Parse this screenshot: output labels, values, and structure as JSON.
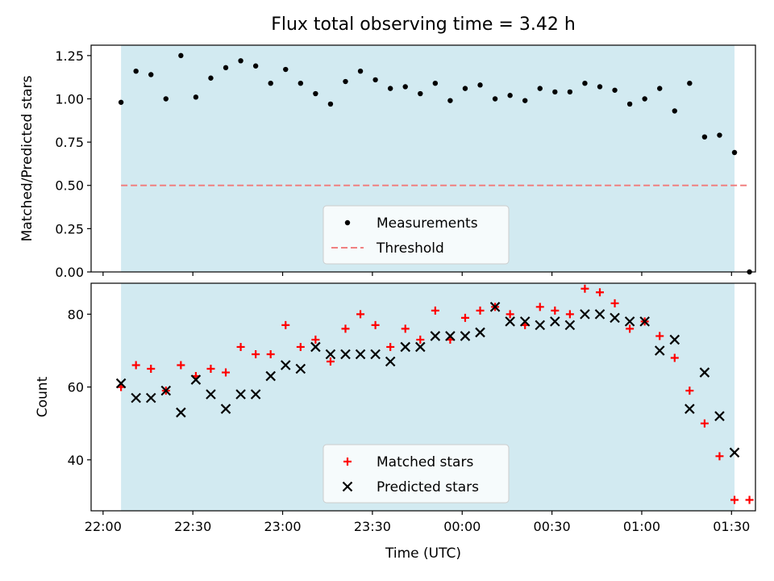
{
  "chart_data": [
    {
      "type": "scatter",
      "title": "Flux total observing time = 3.42 h",
      "xlabel": "",
      "ylabel": "Matched/Predicted stars",
      "ylim": [
        0,
        1.31
      ],
      "yticks": [
        0.0,
        0.25,
        0.5,
        0.75,
        1.0,
        1.25
      ],
      "ytick_labels": [
        "0.00",
        "0.25",
        "0.50",
        "0.75",
        "1.00",
        "1.25"
      ],
      "x_range": [
        "21:56",
        "01:38"
      ],
      "shaded_span": [
        "22:06",
        "01:31"
      ],
      "shade_color": "#add8e6",
      "legend_position": "lower center",
      "series": [
        {
          "name": "Measurements",
          "marker": "dot",
          "color": "#000000",
          "x": [
            "22:06",
            "22:11",
            "22:16",
            "22:21",
            "22:26",
            "22:31",
            "22:36",
            "22:41",
            "22:46",
            "22:51",
            "22:56",
            "23:01",
            "23:06",
            "23:11",
            "23:16",
            "23:21",
            "23:26",
            "23:31",
            "23:36",
            "23:41",
            "23:46",
            "23:51",
            "23:56",
            "00:01",
            "00:06",
            "00:11",
            "00:16",
            "00:21",
            "00:26",
            "00:31",
            "00:36",
            "00:41",
            "00:46",
            "00:51",
            "00:56",
            "01:01",
            "01:06",
            "01:11",
            "01:16",
            "01:21",
            "01:26",
            "01:31",
            "01:36"
          ],
          "y": [
            0.98,
            1.16,
            1.14,
            1.0,
            1.25,
            1.01,
            1.12,
            1.18,
            1.22,
            1.19,
            1.09,
            1.17,
            1.09,
            1.03,
            0.97,
            1.1,
            1.16,
            1.11,
            1.06,
            1.07,
            1.03,
            1.09,
            0.99,
            1.06,
            1.08,
            1.0,
            1.02,
            0.99,
            1.06,
            1.04,
            1.04,
            1.09,
            1.07,
            1.05,
            0.97,
            1.0,
            1.06,
            0.93,
            1.09,
            0.78,
            0.79,
            0.69,
            0.0
          ]
        },
        {
          "name": "Threshold",
          "style": "dashed",
          "color": "#f08080",
          "x": [
            "22:06",
            "01:36"
          ],
          "y": [
            0.5,
            0.5
          ]
        }
      ]
    },
    {
      "type": "scatter",
      "title": "",
      "xlabel": "Time (UTC)",
      "ylabel": "Count",
      "ylim": [
        26,
        88.5
      ],
      "yticks": [
        40,
        60,
        80
      ],
      "ytick_labels": [
        "40",
        "60",
        "80"
      ],
      "xticks": [
        "22:00",
        "22:30",
        "23:00",
        "23:30",
        "00:00",
        "00:30",
        "01:00",
        "01:30"
      ],
      "x_range": [
        "21:56",
        "01:38"
      ],
      "shaded_span": [
        "22:06",
        "01:31"
      ],
      "shade_color": "#add8e6",
      "legend_position": "lower center",
      "series": [
        {
          "name": "Matched stars",
          "marker": "plus",
          "color": "#ff0000",
          "x": [
            "22:06",
            "22:11",
            "22:16",
            "22:21",
            "22:26",
            "22:31",
            "22:36",
            "22:41",
            "22:46",
            "22:51",
            "22:56",
            "23:01",
            "23:06",
            "23:11",
            "23:16",
            "23:21",
            "23:26",
            "23:31",
            "23:36",
            "23:41",
            "23:46",
            "23:51",
            "23:56",
            "00:01",
            "00:06",
            "00:11",
            "00:16",
            "00:21",
            "00:26",
            "00:31",
            "00:36",
            "00:41",
            "00:46",
            "00:51",
            "00:56",
            "01:01",
            "01:06",
            "01:11",
            "01:16",
            "01:21",
            "01:26",
            "01:31",
            "01:36"
          ],
          "y": [
            60,
            66,
            65,
            59,
            66,
            63,
            65,
            64,
            71,
            69,
            69,
            77,
            71,
            73,
            67,
            76,
            80,
            77,
            71,
            76,
            73,
            81,
            73,
            79,
            81,
            82,
            80,
            77,
            82,
            81,
            80,
            87,
            86,
            83,
            76,
            78,
            74,
            68,
            59,
            50,
            41,
            29,
            29
          ]
        },
        {
          "name": "Predicted stars",
          "marker": "x",
          "color": "#000000",
          "x": [
            "22:06",
            "22:11",
            "22:16",
            "22:21",
            "22:26",
            "22:31",
            "22:36",
            "22:41",
            "22:46",
            "22:51",
            "22:56",
            "23:01",
            "23:06",
            "23:11",
            "23:16",
            "23:21",
            "23:26",
            "23:31",
            "23:36",
            "23:41",
            "23:46",
            "23:51",
            "23:56",
            "00:01",
            "00:06",
            "00:11",
            "00:16",
            "00:21",
            "00:26",
            "00:31",
            "00:36",
            "00:41",
            "00:46",
            "00:51",
            "00:56",
            "01:01",
            "01:06",
            "01:11",
            "01:16",
            "01:21",
            "01:26",
            "01:31"
          ],
          "y": [
            61,
            57,
            57,
            59,
            53,
            62,
            58,
            54,
            58,
            58,
            63,
            66,
            65,
            71,
            69,
            69,
            69,
            69,
            67,
            71,
            71,
            74,
            74,
            74,
            75,
            82,
            78,
            78,
            77,
            78,
            77,
            80,
            80,
            79,
            78,
            78,
            70,
            73,
            54,
            64,
            52,
            42
          ]
        }
      ]
    }
  ]
}
